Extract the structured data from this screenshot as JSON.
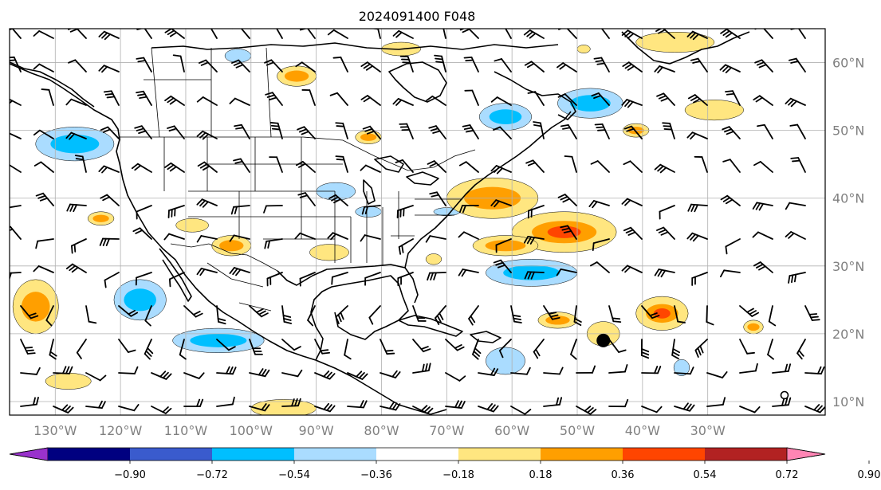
{
  "title": "2024091400 F048",
  "map": {
    "lon_range": [
      -137,
      -12
    ],
    "lat_range": [
      8,
      65
    ],
    "lon_ticks": [
      {
        "value": -130,
        "label": "130°W"
      },
      {
        "value": -120,
        "label": "120°W"
      },
      {
        "value": -110,
        "label": "110°W"
      },
      {
        "value": -100,
        "label": "100°W"
      },
      {
        "value": -90,
        "label": "90°W"
      },
      {
        "value": -80,
        "label": "80°W"
      },
      {
        "value": -70,
        "label": "70°W"
      },
      {
        "value": -60,
        "label": "60°W"
      },
      {
        "value": -50,
        "label": "50°W"
      },
      {
        "value": -40,
        "label": "40°W"
      },
      {
        "value": -30,
        "label": "30°W"
      }
    ],
    "lat_ticks": [
      {
        "value": 10,
        "label": "10°N"
      },
      {
        "value": 20,
        "label": "20°N"
      },
      {
        "value": 30,
        "label": "30°N"
      },
      {
        "value": 40,
        "label": "40°N"
      },
      {
        "value": 50,
        "label": "50°N"
      },
      {
        "value": 60,
        "label": "60°N"
      }
    ],
    "grid": true
  },
  "colorbar": {
    "orientation": "horizontal",
    "extend": "both",
    "ticks": [
      "−0.90",
      "−0.72",
      "−0.54",
      "−0.36",
      "−0.18",
      "0.18",
      "0.36",
      "0.54",
      "0.72",
      "0.90"
    ],
    "colors": [
      "#9932cc",
      "#000080",
      "#3a5bcd",
      "#00bfff",
      "#aadcff",
      "#ffffff",
      "#ffe680",
      "#ff9f00",
      "#ff4500",
      "#b22222",
      "#ff85b4"
    ]
  },
  "anomaly_regions": [
    {
      "lon": -127,
      "lat": 48,
      "rx": 6,
      "ry": 2.5,
      "level": -1,
      "core": -2
    },
    {
      "lon": -117,
      "lat": 25,
      "rx": 4,
      "ry": 3,
      "level": -1,
      "core": -2
    },
    {
      "lon": -105,
      "lat": 19,
      "rx": 7,
      "ry": 1.8,
      "level": -1,
      "core": -2
    },
    {
      "lon": -102,
      "lat": 61,
      "rx": 2,
      "ry": 1,
      "level": -1
    },
    {
      "lon": -61,
      "lat": 52,
      "rx": 4,
      "ry": 2,
      "level": -1,
      "core": -2
    },
    {
      "lon": -48,
      "lat": 54,
      "rx": 5,
      "ry": 2.2,
      "level": -1,
      "core": -2
    },
    {
      "lon": -57,
      "lat": 29,
      "rx": 7,
      "ry": 2,
      "level": -1,
      "core": -2
    },
    {
      "lon": -87,
      "lat": 41,
      "rx": 3,
      "ry": 1.3,
      "level": -1
    },
    {
      "lon": -82,
      "lat": 38,
      "rx": 2,
      "ry": 0.8,
      "level": -1
    },
    {
      "lon": -70,
      "lat": 38,
      "rx": 2,
      "ry": 0.6,
      "level": -1
    },
    {
      "lon": -61,
      "lat": 16,
      "rx": 3,
      "ry": 2,
      "level": -1
    },
    {
      "lon": -34,
      "lat": 15,
      "rx": 1.2,
      "ry": 1.2,
      "level": -1
    },
    {
      "lon": -133,
      "lat": 24,
      "rx": 3.5,
      "ry": 4,
      "level": 1,
      "core": 2
    },
    {
      "lon": -123,
      "lat": 37,
      "rx": 2,
      "ry": 1,
      "level": 1,
      "core": 2
    },
    {
      "lon": -128,
      "lat": 13,
      "rx": 3.5,
      "ry": 1.2,
      "level": 1
    },
    {
      "lon": -109,
      "lat": 36,
      "rx": 2.5,
      "ry": 1,
      "level": 1
    },
    {
      "lon": -103,
      "lat": 33,
      "rx": 3,
      "ry": 1.5,
      "level": 1,
      "core": 2
    },
    {
      "lon": -93,
      "lat": 58,
      "rx": 3,
      "ry": 1.5,
      "level": 1,
      "core": 2
    },
    {
      "lon": -88,
      "lat": 32,
      "rx": 3,
      "ry": 1.2,
      "level": 1
    },
    {
      "lon": -95,
      "lat": 9,
      "rx": 5,
      "ry": 1.3,
      "level": 1
    },
    {
      "lon": -82,
      "lat": 49,
      "rx": 2,
      "ry": 1,
      "level": 1,
      "core": 2
    },
    {
      "lon": -77,
      "lat": 62,
      "rx": 3,
      "ry": 1,
      "level": 1
    },
    {
      "lon": -63,
      "lat": 40,
      "rx": 7,
      "ry": 3,
      "level": 1,
      "core": 2
    },
    {
      "lon": -52,
      "lat": 35,
      "rx": 8,
      "ry": 3,
      "level": 1,
      "core": 2,
      "core2": 3
    },
    {
      "lon": -61,
      "lat": 33,
      "rx": 5,
      "ry": 1.5,
      "level": 1,
      "core": 2
    },
    {
      "lon": -53,
      "lat": 22,
      "rx": 3,
      "ry": 1.2,
      "level": 1,
      "core": 2
    },
    {
      "lon": -46,
      "lat": 20,
      "rx": 2.5,
      "ry": 1.8,
      "level": 1
    },
    {
      "lon": -37,
      "lat": 23,
      "rx": 4,
      "ry": 2.5,
      "level": 1,
      "core": 2,
      "core2": 3
    },
    {
      "lon": -35,
      "lat": 63,
      "rx": 6,
      "ry": 1.5,
      "level": 1
    },
    {
      "lon": -29,
      "lat": 53,
      "rx": 4.5,
      "ry": 1.5,
      "level": 1
    },
    {
      "lon": -41,
      "lat": 50,
      "rx": 2,
      "ry": 1,
      "level": 1,
      "core": 2
    },
    {
      "lon": -23,
      "lat": 21,
      "rx": 1.5,
      "ry": 1,
      "level": 1,
      "core": 2
    },
    {
      "lon": -72,
      "lat": 31,
      "rx": 1.2,
      "ry": 0.8,
      "level": 1
    },
    {
      "lon": -49,
      "lat": 62,
      "rx": 1,
      "ry": 0.6,
      "level": 1
    }
  ],
  "storm_center": {
    "lon": -46,
    "lat": 19
  }
}
